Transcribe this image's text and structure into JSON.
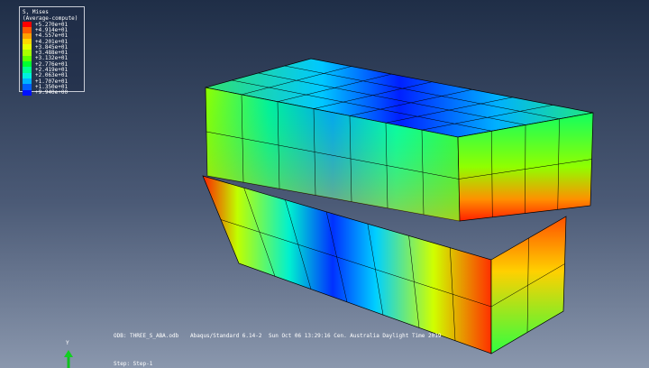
{
  "legend": {
    "title": "S, Mises",
    "subtitle": "(Average-compute)",
    "values": [
      "+5.270e+01",
      "+4.914e+01",
      "+4.557e+01",
      "+4.201e+01",
      "+3.845e+01",
      "+3.488e+01",
      "+3.132e+01",
      "+2.776e+01",
      "+2.419e+01",
      "+2.063e+01",
      "+1.707e+01",
      "+1.350e+01",
      "+9.940e+00"
    ],
    "colors": [
      "#ff0000",
      "#ff5a00",
      "#ffa000",
      "#ffd800",
      "#e8ff00",
      "#a8ff00",
      "#5cff00",
      "#00ff30",
      "#00ff90",
      "#00f0e0",
      "#00b4ff",
      "#0060ff",
      "#0010ff"
    ]
  },
  "footer": {
    "odb": "ODB: THREE_S_ABA.odb",
    "solver": "Abaqus/Standard 6.14-2",
    "date": "Sun Oct 06 13:29:16 Cen. Australia Daylight Time 2019",
    "step": "Step: Step-1"
  },
  "triad": {
    "y_label": "Y"
  }
}
